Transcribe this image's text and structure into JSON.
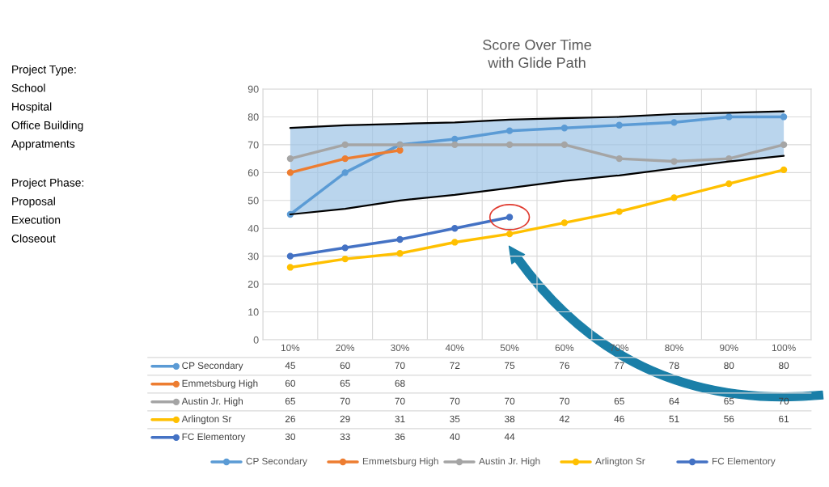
{
  "chart_data": {
    "type": "line",
    "title": "Score Over Time\nwith Glide Path",
    "categories": [
      "10%",
      "20%",
      "30%",
      "40%",
      "50%",
      "60%",
      "70%",
      "80%",
      "90%",
      "100%"
    ],
    "series": [
      {
        "type": "line",
        "color": "#000000",
        "values": [
          76,
          77,
          77.5,
          78,
          79,
          79.5,
          80,
          81,
          81.5,
          82
        ],
        "lower": [
          45,
          47,
          50,
          52,
          54.5,
          57,
          59,
          61.5,
          64,
          66
        ],
        "upper": [
          76,
          77,
          77.5,
          78,
          79,
          79.5,
          80,
          81,
          81.5,
          82
        ],
        "marker": "none",
        "value_labels": [
          null,
          null,
          null,
          null,
          null,
          null,
          null,
          null,
          null,
          null
        ]
      },
      {
        "type": "line",
        "color": "#000000",
        "values": [
          45,
          47,
          50,
          52,
          54.5,
          57,
          59,
          61.5,
          64,
          66
        ],
        "marker": "none",
        "value_labels": [
          null,
          null,
          null,
          null,
          null,
          null,
          null,
          null,
          null,
          null
        ]
      },
      {
        "name": "CP Secondary",
        "color": "#5b9bd5",
        "values": [
          45,
          60,
          70,
          72,
          75,
          76,
          77,
          78,
          80,
          80
        ]
      },
      {
        "name": "Emmetsburg High",
        "color": "#ed7d31",
        "values": [
          60,
          65,
          68,
          null,
          null,
          null,
          null,
          null,
          null,
          null
        ]
      },
      {
        "name": "Austin Jr. High",
        "color": "#a5a5a5",
        "values": [
          65,
          70,
          70,
          70,
          70,
          70,
          65,
          64,
          65,
          70
        ]
      },
      {
        "name": "Arlington Sr",
        "color": "#ffc000",
        "values": [
          26,
          29,
          31,
          35,
          38,
          42,
          46,
          51,
          56,
          61
        ]
      },
      {
        "name": "FC Elementory",
        "color": "#4472c4",
        "values": [
          30,
          33,
          36,
          40,
          44,
          null,
          null,
          null,
          null,
          null
        ]
      }
    ],
    "ylim": [
      0,
      90
    ],
    "yticks": [
      0,
      10,
      20,
      30,
      40,
      50,
      60,
      70,
      80,
      90
    ],
    "grid": true,
    "legend": "bottom",
    "marker": "circle",
    "data_labels": true,
    "annotations": [
      "Project Type:",
      "School",
      "Hospital",
      "Office Building",
      "Appratments",
      "Project Phase:",
      "Proposal",
      "Execution",
      "Closeout"
    ]
  }
}
